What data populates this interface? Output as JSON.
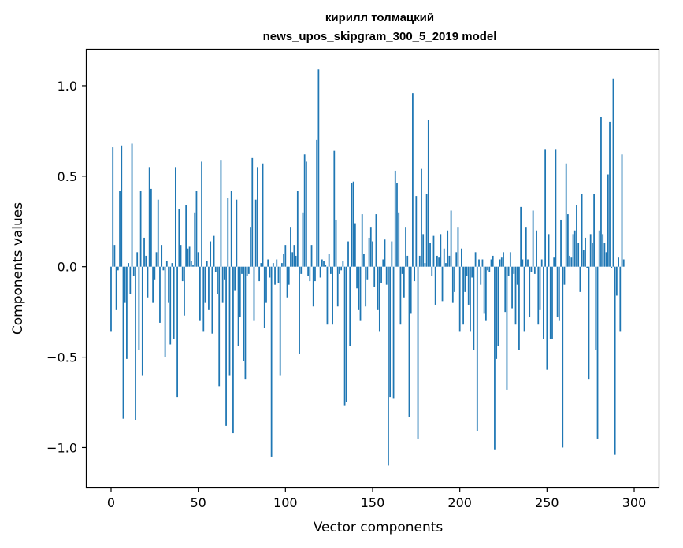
{
  "chart_data": {
    "type": "bar",
    "title": "кирилл толмацкий",
    "subtitle": "news_upos_skipgram_300_5_2019 model",
    "xlabel": "Vector components",
    "ylabel": "Components values",
    "xlim": [
      -14,
      314
    ],
    "ylim": [
      -1.22,
      1.2
    ],
    "xticks": [
      0,
      50,
      100,
      150,
      200,
      250,
      300
    ],
    "xtick_labels": [
      "0",
      "50",
      "100",
      "150",
      "200",
      "250",
      "300"
    ],
    "yticks": [
      -1.0,
      -0.5,
      0.0,
      0.5,
      1.0
    ],
    "ytick_labels": [
      "−1.0",
      "−0.5",
      "0.0",
      "0.5",
      "1.0"
    ],
    "grid": false,
    "bar_color": "#1f77b4",
    "series": [
      {
        "values": [
          -0.36,
          0.66,
          0.12,
          -0.24,
          -0.02,
          0.42,
          0.67,
          -0.84,
          -0.2,
          -0.51,
          0.02,
          -0.15,
          0.68,
          -0.05,
          -0.85,
          0.08,
          -0.46,
          0.42,
          -0.6,
          0.16,
          0.06,
          -0.17,
          0.55,
          0.43,
          -0.2,
          -0.07,
          0.08,
          0.37,
          -0.31,
          0.12,
          -0.02,
          -0.5,
          0.03,
          -0.2,
          -0.43,
          0.02,
          -0.4,
          0.55,
          -0.72,
          0.32,
          0.12,
          -0.08,
          -0.27,
          0.34,
          0.1,
          0.11,
          0.03,
          0.01,
          0.3,
          0.42,
          0.08,
          -0.3,
          0.58,
          -0.36,
          -0.2,
          0.03,
          -0.24,
          0.14,
          -0.37,
          0.17,
          -0.03,
          -0.15,
          -0.66,
          0.59,
          -0.2,
          -0.07,
          -0.88,
          0.38,
          -0.6,
          0.42,
          -0.92,
          -0.13,
          0.37,
          -0.44,
          -0.28,
          -0.04,
          -0.52,
          -0.62,
          -0.05,
          -0.04,
          0.22,
          0.6,
          -0.3,
          0.37,
          0.55,
          -0.08,
          0.02,
          0.57,
          -0.34,
          -0.2,
          0.04,
          -0.06,
          -1.05,
          0.02,
          -0.1,
          0.04,
          -0.09,
          -0.6,
          0.02,
          0.07,
          0.12,
          -0.17,
          -0.1,
          0.22,
          0.08,
          0.12,
          0.06,
          0.42,
          -0.48,
          -0.04,
          0.3,
          0.62,
          0.58,
          -0.05,
          -0.08,
          0.12,
          -0.22,
          -0.08,
          0.7,
          1.09,
          -0.06,
          0.04,
          0.03,
          0.01,
          -0.32,
          0.07,
          -0.04,
          -0.32,
          0.64,
          0.26,
          -0.22,
          -0.04,
          -0.02,
          0.03,
          -0.77,
          -0.75,
          0.14,
          -0.44,
          0.46,
          0.47,
          0.24,
          -0.12,
          -0.24,
          -0.3,
          0.29,
          0.07,
          -0.22,
          -0.07,
          0.16,
          0.22,
          0.14,
          -0.11,
          0.29,
          -0.24,
          -0.36,
          -0.09,
          0.04,
          0.15,
          -0.1,
          -1.1,
          -0.72,
          0.14,
          -0.73,
          0.53,
          0.46,
          0.3,
          -0.32,
          -0.04,
          -0.17,
          0.22,
          0.06,
          -0.83,
          -0.26,
          0.96,
          -0.08,
          0.39,
          -0.95,
          0.06,
          0.54,
          0.18,
          0.02,
          0.4,
          0.81,
          0.13,
          -0.05,
          0.17,
          -0.21,
          0.06,
          0.05,
          0.18,
          -0.19,
          0.1,
          0.02,
          0.2,
          0.06,
          0.31,
          -0.2,
          -0.14,
          0.08,
          0.22,
          -0.36,
          0.1,
          -0.32,
          -0.14,
          -0.05,
          -0.21,
          -0.36,
          -0.06,
          -0.46,
          0.08,
          -0.91,
          0.04,
          -0.1,
          0.04,
          -0.26,
          -0.3,
          -0.02,
          -0.03,
          0.04,
          0.06,
          -1.01,
          -0.51,
          -0.44,
          0.04,
          0.05,
          0.08,
          -0.25,
          -0.68,
          -0.05,
          0.08,
          -0.23,
          -0.04,
          -0.32,
          -0.1,
          -0.46,
          0.33,
          0.04,
          -0.36,
          0.22,
          0.04,
          -0.28,
          -0.03,
          0.31,
          -0.04,
          0.2,
          -0.32,
          -0.24,
          0.04,
          -0.4,
          0.65,
          -0.57,
          0.18,
          -0.4,
          -0.4,
          0.05,
          0.65,
          -0.28,
          -0.3,
          0.26,
          -1.0,
          -0.1,
          0.57,
          0.29,
          0.06,
          0.05,
          0.18,
          0.2,
          0.34,
          0.13,
          -0.14,
          0.4,
          0.09,
          0.16,
          -0.01,
          -0.62,
          0.18,
          0.13,
          0.4,
          -0.46,
          -0.95,
          0.2,
          0.83,
          0.18,
          0.13,
          0.08,
          0.51,
          0.8,
          -0.01,
          1.04,
          -1.04,
          -0.16,
          0.05,
          -0.36,
          0.62,
          0.04
        ]
      }
    ]
  }
}
